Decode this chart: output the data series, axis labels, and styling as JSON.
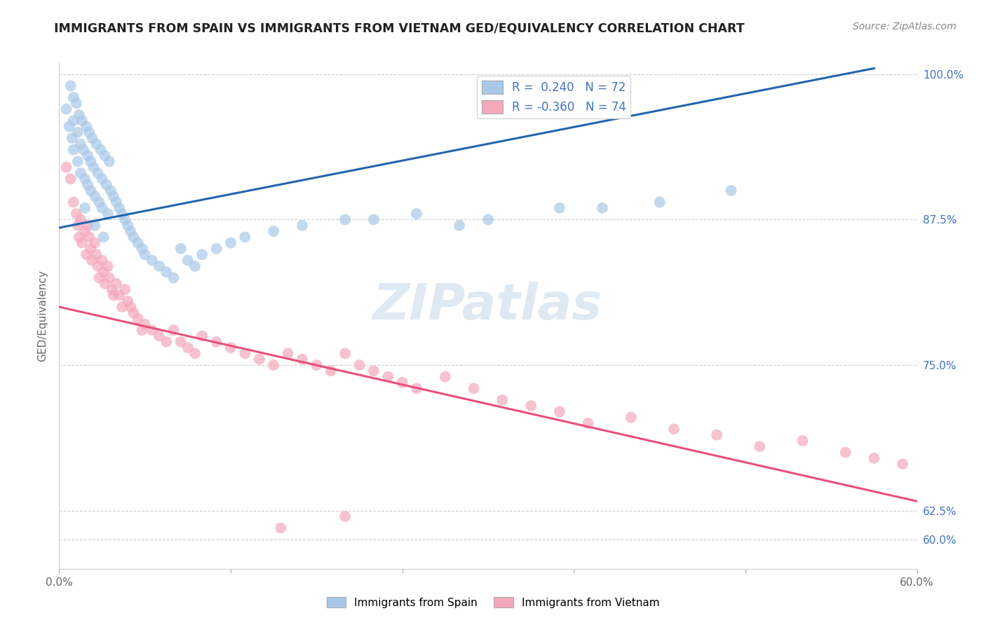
{
  "title": "IMMIGRANTS FROM SPAIN VS IMMIGRANTS FROM VIETNAM GED/EQUIVALENCY CORRELATION CHART",
  "source": "Source: ZipAtlas.com",
  "ylabel_label": "GED/Equivalency",
  "ytick_labels": [
    "60.0%",
    "62.5%",
    "75.0%",
    "87.5%",
    "100.0%"
  ],
  "ytick_values": [
    0.6,
    0.625,
    0.75,
    0.875,
    1.0
  ],
  "xtick_labels": [
    "0.0%",
    "",
    "",
    "",
    "",
    "60.0%"
  ],
  "xtick_values": [
    0.0,
    0.12,
    0.24,
    0.36,
    0.48,
    0.6
  ],
  "r_spain": 0.24,
  "n_spain": 72,
  "r_vietnam": -0.36,
  "n_vietnam": 74,
  "spain_color": "#a8c8e8",
  "vietnam_color": "#f4a8bc",
  "spain_line_color": "#2166ac",
  "vietnam_line_color": "#e8507a",
  "legend_label_spain": "Immigrants from Spain",
  "legend_label_vietnam": "Immigrants from Vietnam",
  "background_color": "#ffffff",
  "spain_line_x0": 0.0,
  "spain_line_y0": 0.868,
  "spain_line_x1": 0.57,
  "spain_line_y1": 1.005,
  "vietnam_line_x0": 0.0,
  "vietnam_line_y0": 0.8,
  "vietnam_line_x1": 0.6,
  "vietnam_line_y1": 0.633,
  "spain_x": [
    0.005,
    0.007,
    0.008,
    0.009,
    0.01,
    0.01,
    0.01,
    0.012,
    0.013,
    0.013,
    0.014,
    0.015,
    0.015,
    0.016,
    0.017,
    0.018,
    0.018,
    0.019,
    0.02,
    0.02,
    0.021,
    0.022,
    0.022,
    0.023,
    0.024,
    0.025,
    0.025,
    0.026,
    0.027,
    0.028,
    0.029,
    0.03,
    0.03,
    0.031,
    0.032,
    0.033,
    0.034,
    0.035,
    0.036,
    0.038,
    0.04,
    0.042,
    0.044,
    0.046,
    0.048,
    0.05,
    0.052,
    0.055,
    0.058,
    0.06,
    0.065,
    0.07,
    0.075,
    0.08,
    0.085,
    0.09,
    0.095,
    0.1,
    0.11,
    0.12,
    0.13,
    0.15,
    0.17,
    0.2,
    0.22,
    0.25,
    0.28,
    0.3,
    0.35,
    0.38,
    0.42,
    0.47
  ],
  "spain_y": [
    0.97,
    0.955,
    0.99,
    0.945,
    0.98,
    0.96,
    0.935,
    0.975,
    0.95,
    0.925,
    0.965,
    0.94,
    0.915,
    0.96,
    0.935,
    0.91,
    0.885,
    0.955,
    0.93,
    0.905,
    0.95,
    0.925,
    0.9,
    0.945,
    0.92,
    0.895,
    0.87,
    0.94,
    0.915,
    0.89,
    0.935,
    0.91,
    0.885,
    0.86,
    0.93,
    0.905,
    0.88,
    0.925,
    0.9,
    0.895,
    0.89,
    0.885,
    0.88,
    0.875,
    0.87,
    0.865,
    0.86,
    0.855,
    0.85,
    0.845,
    0.84,
    0.835,
    0.83,
    0.825,
    0.85,
    0.84,
    0.835,
    0.845,
    0.85,
    0.855,
    0.86,
    0.865,
    0.87,
    0.875,
    0.875,
    0.88,
    0.87,
    0.875,
    0.885,
    0.885,
    0.89,
    0.9
  ],
  "vietnam_x": [
    0.005,
    0.008,
    0.01,
    0.012,
    0.013,
    0.014,
    0.015,
    0.016,
    0.018,
    0.019,
    0.02,
    0.021,
    0.022,
    0.023,
    0.025,
    0.026,
    0.027,
    0.028,
    0.03,
    0.031,
    0.032,
    0.034,
    0.035,
    0.037,
    0.038,
    0.04,
    0.042,
    0.044,
    0.046,
    0.048,
    0.05,
    0.052,
    0.055,
    0.058,
    0.06,
    0.065,
    0.07,
    0.075,
    0.08,
    0.085,
    0.09,
    0.095,
    0.1,
    0.11,
    0.12,
    0.13,
    0.14,
    0.15,
    0.16,
    0.17,
    0.18,
    0.19,
    0.2,
    0.21,
    0.22,
    0.23,
    0.24,
    0.25,
    0.27,
    0.29,
    0.31,
    0.33,
    0.35,
    0.37,
    0.4,
    0.43,
    0.46,
    0.49,
    0.52,
    0.55,
    0.57,
    0.59,
    0.2,
    0.155
  ],
  "vietnam_y": [
    0.92,
    0.91,
    0.89,
    0.88,
    0.87,
    0.86,
    0.875,
    0.855,
    0.865,
    0.845,
    0.87,
    0.86,
    0.85,
    0.84,
    0.855,
    0.845,
    0.835,
    0.825,
    0.84,
    0.83,
    0.82,
    0.835,
    0.825,
    0.815,
    0.81,
    0.82,
    0.81,
    0.8,
    0.815,
    0.805,
    0.8,
    0.795,
    0.79,
    0.78,
    0.785,
    0.78,
    0.775,
    0.77,
    0.78,
    0.77,
    0.765,
    0.76,
    0.775,
    0.77,
    0.765,
    0.76,
    0.755,
    0.75,
    0.76,
    0.755,
    0.75,
    0.745,
    0.76,
    0.75,
    0.745,
    0.74,
    0.735,
    0.73,
    0.74,
    0.73,
    0.72,
    0.715,
    0.71,
    0.7,
    0.705,
    0.695,
    0.69,
    0.68,
    0.685,
    0.675,
    0.67,
    0.665,
    0.62,
    0.61
  ]
}
